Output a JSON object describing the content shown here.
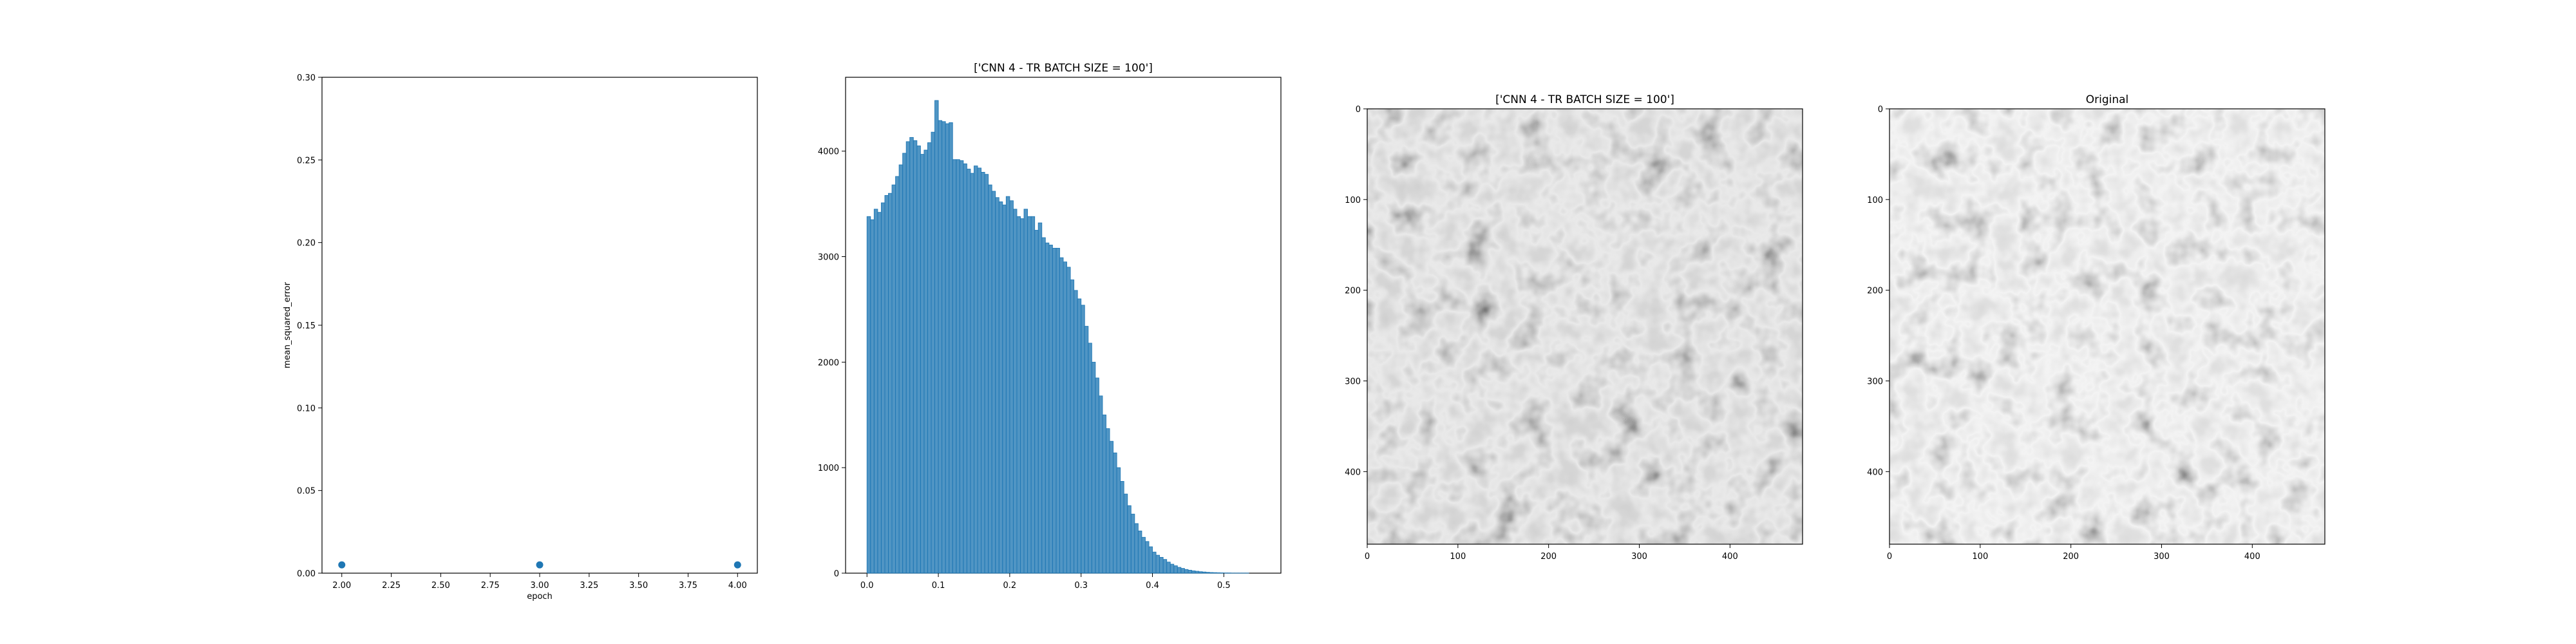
{
  "chart_data": [
    {
      "type": "scatter",
      "title": "",
      "xlabel": "epoch",
      "ylabel": "mean_squared_error",
      "xlim": [
        1.9,
        4.1
      ],
      "ylim": [
        0.0,
        0.3
      ],
      "xticks": [
        "2.00",
        "2.25",
        "2.50",
        "2.75",
        "3.00",
        "3.25",
        "3.50",
        "3.75",
        "4.00"
      ],
      "yticks": [
        "0.00",
        "0.05",
        "0.10",
        "0.15",
        "0.20",
        "0.25",
        "0.30"
      ],
      "x": [
        2,
        3,
        4
      ],
      "y": [
        0.005,
        0.005,
        0.005
      ],
      "marker_color": "#1f77b4",
      "grid": false
    },
    {
      "type": "bar",
      "title": "['CNN 4 - TR BATCH SIZE = 100']",
      "xlabel": "",
      "ylabel": "",
      "xlim": [
        -0.03,
        0.58
      ],
      "ylim": [
        0,
        4700
      ],
      "xticks": [
        "0.0",
        "0.1",
        "0.2",
        "0.3",
        "0.4",
        "0.5"
      ],
      "yticks": [
        "0",
        "1000",
        "2000",
        "3000",
        "4000"
      ],
      "bin_start": 0.0,
      "bin_width": 0.005,
      "values": [
        3380,
        3350,
        3450,
        3420,
        3510,
        3580,
        3600,
        3680,
        3760,
        3870,
        3980,
        4090,
        4130,
        4100,
        4050,
        3970,
        4010,
        4080,
        4180,
        4480,
        4290,
        4280,
        4260,
        4270,
        3920,
        3920,
        3910,
        3880,
        3830,
        3790,
        3860,
        3840,
        3800,
        3780,
        3680,
        3620,
        3560,
        3520,
        3490,
        3570,
        3530,
        3450,
        3380,
        3360,
        3450,
        3380,
        3380,
        3250,
        3320,
        3180,
        3130,
        3110,
        3080,
        3080,
        2990,
        2950,
        2900,
        2780,
        2680,
        2600,
        2540,
        2340,
        2180,
        2000,
        1850,
        1680,
        1500,
        1370,
        1250,
        1140,
        1000,
        870,
        750,
        640,
        560,
        470,
        400,
        340,
        300,
        250,
        200,
        170,
        150,
        130,
        105,
        85,
        70,
        55,
        45,
        35,
        28,
        22,
        18,
        14,
        11,
        8,
        6,
        5,
        4,
        3,
        2,
        2,
        1,
        1,
        1,
        1,
        1
      ],
      "bar_color": "#1f77b4",
      "grid": false
    },
    {
      "type": "heatmap",
      "title": "['CNN 4 - TR BATCH SIZE = 100']",
      "xticks": [
        "0",
        "100",
        "200",
        "300",
        "400"
      ],
      "yticks": [
        "0",
        "100",
        "200",
        "300",
        "400"
      ],
      "xlim": [
        0,
        480
      ],
      "ylim": [
        480,
        0
      ],
      "colormap": "gray"
    },
    {
      "type": "heatmap",
      "title": "Original",
      "xticks": [
        "0",
        "100",
        "200",
        "300",
        "400"
      ],
      "yticks": [
        "0",
        "100",
        "200",
        "300",
        "400"
      ],
      "xlim": [
        0,
        480
      ],
      "ylim": [
        480,
        0
      ],
      "colormap": "gray"
    }
  ]
}
